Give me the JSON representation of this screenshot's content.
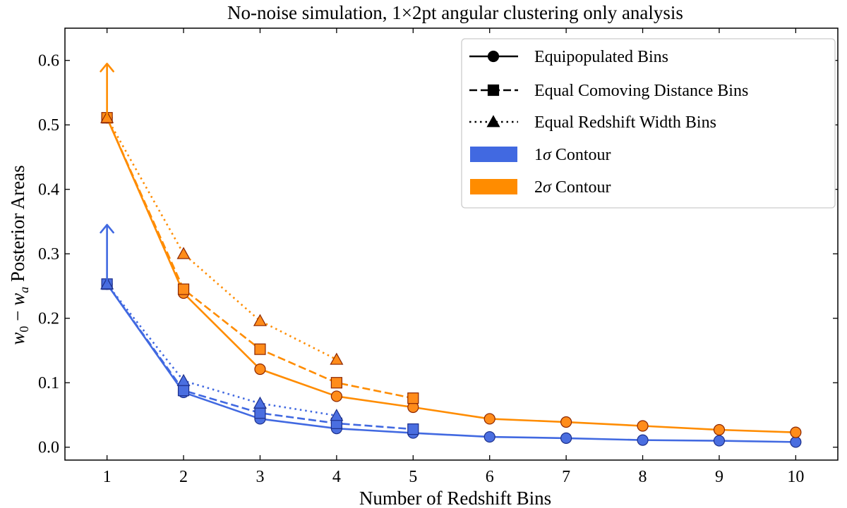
{
  "chart_data": {
    "type": "line",
    "title": "No-noise simulation, 1×2pt angular clustering only analysis",
    "xlabel": "Number of Redshift Bins",
    "ylabel_parts": [
      "w",
      "0",
      " − ",
      "w",
      "a",
      " Posterior Areas"
    ],
    "xlim": [
      0.45,
      10.55
    ],
    "ylim": [
      -0.02,
      0.65
    ],
    "xticks": [
      1,
      2,
      3,
      4,
      5,
      6,
      7,
      8,
      9,
      10
    ],
    "yticks": [
      0.0,
      0.1,
      0.2,
      0.3,
      0.4,
      0.5,
      0.6
    ],
    "ytick_labels": [
      "0.0",
      "0.1",
      "0.2",
      "0.3",
      "0.4",
      "0.5",
      "0.6"
    ],
    "grid": false,
    "legend_position": "top-right",
    "colors": {
      "sigma1_line": "#4169e1",
      "sigma1_marker": "#4a6ee0",
      "sigma2_line": "#ff8c00",
      "sigma2_marker": "#ff8c1a",
      "sigma2_marker_edge": "#8b2500",
      "sigma1_marker_edge": "#1c2f8a"
    },
    "series": [
      {
        "name": "Equipopulated Bins",
        "contour": "1σ",
        "linestyle": "solid",
        "marker": "circle",
        "x": [
          1,
          2,
          3,
          4,
          5,
          6,
          7,
          8,
          9,
          10
        ],
        "y": [
          0.253,
          0.085,
          0.044,
          0.029,
          0.022,
          0.016,
          0.014,
          0.011,
          0.01,
          0.008
        ]
      },
      {
        "name": "Equal Comoving Distance Bins",
        "contour": "1σ",
        "linestyle": "dashed",
        "marker": "square",
        "x": [
          1,
          2,
          3,
          4,
          5
        ],
        "y": [
          0.253,
          0.088,
          0.053,
          0.037,
          0.028
        ]
      },
      {
        "name": "Equal Redshift Width Bins",
        "contour": "1σ",
        "linestyle": "dotted",
        "marker": "triangle",
        "x": [
          1,
          2,
          3,
          4
        ],
        "y": [
          0.253,
          0.103,
          0.068,
          0.049
        ]
      },
      {
        "name": "Equipopulated Bins",
        "contour": "2σ",
        "linestyle": "solid",
        "marker": "circle",
        "x": [
          1,
          2,
          3,
          4,
          5,
          6,
          7,
          8,
          9,
          10
        ],
        "y": [
          0.511,
          0.239,
          0.121,
          0.079,
          0.062,
          0.044,
          0.039,
          0.033,
          0.027,
          0.023
        ]
      },
      {
        "name": "Equal Comoving Distance Bins",
        "contour": "2σ",
        "linestyle": "dashed",
        "marker": "square",
        "x": [
          1,
          2,
          3,
          4,
          5
        ],
        "y": [
          0.511,
          0.245,
          0.152,
          0.1,
          0.076
        ]
      },
      {
        "name": "Equal Redshift Width Bins",
        "contour": "2σ",
        "linestyle": "dotted",
        "marker": "triangle",
        "x": [
          1,
          2,
          3,
          4
        ],
        "y": [
          0.511,
          0.3,
          0.196,
          0.136
        ]
      }
    ],
    "arrows": [
      {
        "contour": "1σ",
        "x": 1,
        "from": 0.253,
        "to": 0.345
      },
      {
        "contour": "2σ",
        "x": 1,
        "from": 0.511,
        "to": 0.595
      }
    ],
    "legend": [
      {
        "label": "Equipopulated Bins",
        "type": "line",
        "linestyle": "solid",
        "marker": "circle"
      },
      {
        "label": "Equal Comoving Distance Bins",
        "type": "line",
        "linestyle": "dashed",
        "marker": "square"
      },
      {
        "label": "Equal Redshift Width Bins",
        "type": "line",
        "linestyle": "dotted",
        "marker": "triangle"
      },
      {
        "label_parts": [
          "1",
          "σ",
          " Contour"
        ],
        "type": "patch",
        "color": "#4169e1"
      },
      {
        "label_parts": [
          "2",
          "σ",
          " Contour"
        ],
        "type": "patch",
        "color": "#ff8c00"
      }
    ]
  }
}
